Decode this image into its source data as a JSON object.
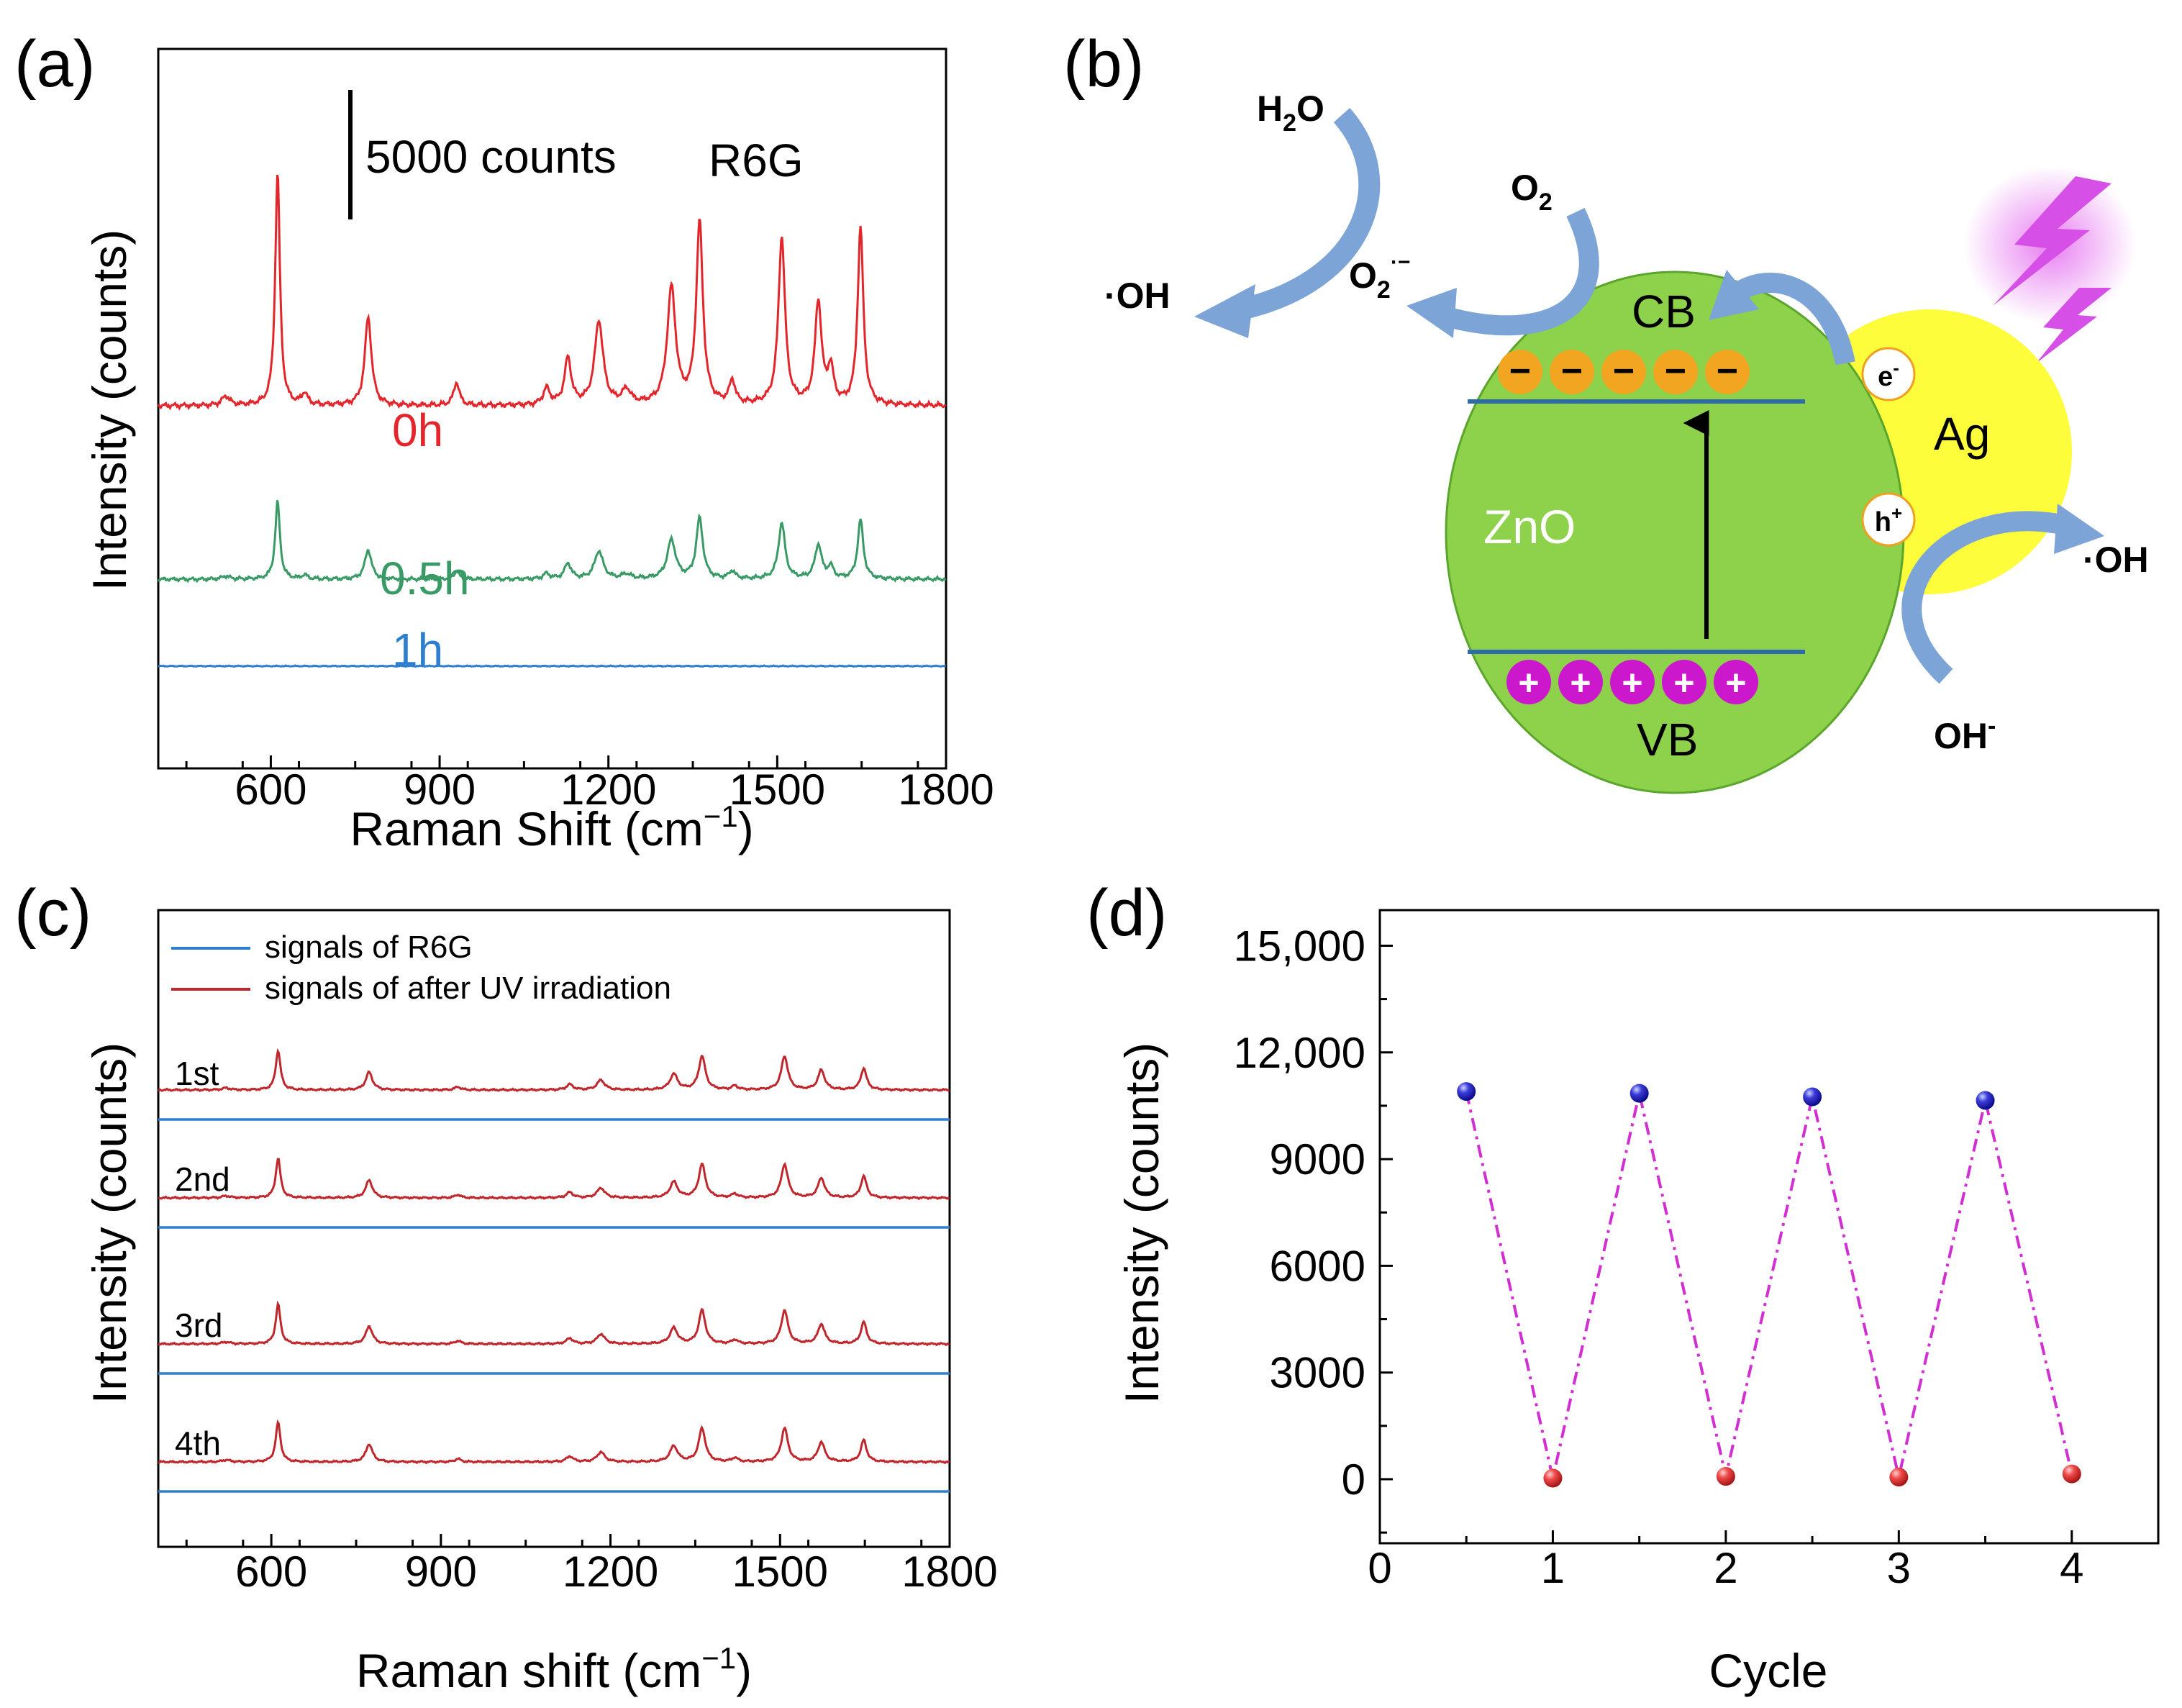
{
  "colors": {
    "red": "#e3262b",
    "green": "#3a9a66",
    "blue": "#2f7fd1",
    "ellipse": "#8ed14a",
    "silver": "#fdfd3c",
    "minus": "#f1a521",
    "plus": "#cc18cc",
    "band": "#2d6ca8",
    "arrow": "#7da4d7",
    "zigzag": "#d22fd2",
    "dot_high": "#2c2cc9",
    "dot_low": "#ee4545"
  },
  "panel_a": {
    "label": "(a)",
    "chart_data": {
      "type": "line",
      "xlabel_main": "Raman Shift (cm",
      "xlabel_sup": "−1",
      "xlabel_end": ")",
      "ylabel": "Intensity (counts)",
      "xlim": [
        400,
        1800
      ],
      "x_ticks": [
        600,
        900,
        1200,
        1500,
        1800
      ],
      "x_tick_labels": [
        "600",
        "900",
        "1200",
        "1500",
        "1800"
      ],
      "scale_bar_label": "5000 counts",
      "scale_bar_counts": 5000,
      "annotation": "R6G",
      "peaks": [
        {
          "x": 520,
          "w": 8,
          "r": 0.04
        },
        {
          "x": 612,
          "w": 5,
          "r": 1.0
        },
        {
          "x": 660,
          "w": 6,
          "r": 0.05
        },
        {
          "x": 773,
          "w": 7,
          "r": 0.38
        },
        {
          "x": 930,
          "w": 6,
          "r": 0.1
        },
        {
          "x": 1090,
          "w": 7,
          "r": 0.07
        },
        {
          "x": 1128,
          "w": 7,
          "r": 0.2
        },
        {
          "x": 1183,
          "w": 9,
          "r": 0.36
        },
        {
          "x": 1232,
          "w": 9,
          "r": 0.06
        },
        {
          "x": 1312,
          "w": 9,
          "r": 0.5
        },
        {
          "x": 1362,
          "w": 7,
          "r": 0.78
        },
        {
          "x": 1420,
          "w": 6,
          "r": 0.1
        },
        {
          "x": 1508,
          "w": 7,
          "r": 0.72
        },
        {
          "x": 1573,
          "w": 7,
          "r": 0.44
        },
        {
          "x": 1595,
          "w": 6,
          "r": 0.15
        },
        {
          "x": 1648,
          "w": 6,
          "r": 0.76
        }
      ],
      "series": [
        {
          "name": "0h",
          "baseline_counts": 14000,
          "peak_counts": 9000
        },
        {
          "name": "0.5h",
          "baseline_counts": 7300,
          "peak_counts": 3000
        },
        {
          "name": "1h",
          "baseline_counts": 3950,
          "peak_counts": 0
        }
      ]
    }
  },
  "panel_b": {
    "label": "(b)",
    "cb": "CB",
    "vb": "VB",
    "zno": "ZnO",
    "ag": "Ag",
    "e_main": "e",
    "e_sup": "-",
    "h_main": "h",
    "h_sup": "+",
    "minus_symbol": "−",
    "plus_symbol": "+",
    "h2o_a": "H",
    "h2o_sub": "2",
    "h2o_b": "O",
    "o2_a": "O",
    "o2_sub": "2",
    "o2rad_a": "O",
    "o2rad_sub": "2",
    "o2rad_sup": "·−",
    "oh_left": "·OH",
    "oh_right": "·OH",
    "ohminus_main": "OH",
    "ohminus_sup": "-"
  },
  "panel_c": {
    "label": "(c)",
    "chart_data": {
      "type": "line",
      "xlabel_main": "Raman shift (cm",
      "xlabel_sup": "−1",
      "xlabel_end": ")",
      "ylabel": "Intensity (counts)",
      "xlim": [
        400,
        1800
      ],
      "x_ticks": [
        600,
        900,
        1200,
        1500,
        1800
      ],
      "x_tick_labels": [
        "600",
        "900",
        "1200",
        "1500",
        "1800"
      ],
      "legend": [
        "signals of R6G",
        "signals of after UV irradiation"
      ],
      "cycles": [
        "1st",
        "2nd",
        "3rd",
        "4th"
      ],
      "peaks": [
        {
          "x": 520,
          "w": 8,
          "r": 0.05
        },
        {
          "x": 612,
          "w": 5,
          "r": 1.0
        },
        {
          "x": 773,
          "w": 7,
          "r": 0.45
        },
        {
          "x": 930,
          "w": 6,
          "r": 0.08
        },
        {
          "x": 1128,
          "w": 7,
          "r": 0.14
        },
        {
          "x": 1183,
          "w": 8,
          "r": 0.25
        },
        {
          "x": 1312,
          "w": 8,
          "r": 0.4
        },
        {
          "x": 1362,
          "w": 7,
          "r": 0.85
        },
        {
          "x": 1420,
          "w": 6,
          "r": 0.1
        },
        {
          "x": 1508,
          "w": 7,
          "r": 0.85
        },
        {
          "x": 1573,
          "w": 7,
          "r": 0.5
        },
        {
          "x": 1648,
          "w": 6,
          "r": 0.55
        }
      ]
    }
  },
  "panel_d": {
    "label": "(d)",
    "chart_data": {
      "type": "scatter",
      "xlabel": "Cycle",
      "ylabel": "Intensity (counts)",
      "xlim": [
        0,
        4.5
      ],
      "ylim": [
        -1800,
        16000
      ],
      "x_ticks": [
        0,
        1,
        2,
        3,
        4
      ],
      "x_tick_labels": [
        "0",
        "1",
        "2",
        "3",
        "4"
      ],
      "y_ticks": [
        0,
        3000,
        6000,
        9000,
        12000,
        15000
      ],
      "y_tick_labels": [
        "0",
        "3000",
        "6000",
        "9000",
        "12,000",
        "15,000"
      ],
      "x": [
        0.5,
        1,
        1.5,
        2,
        2.5,
        3,
        3.5,
        4
      ],
      "y": [
        10900,
        30,
        10850,
        80,
        10750,
        60,
        10650,
        150
      ]
    }
  }
}
